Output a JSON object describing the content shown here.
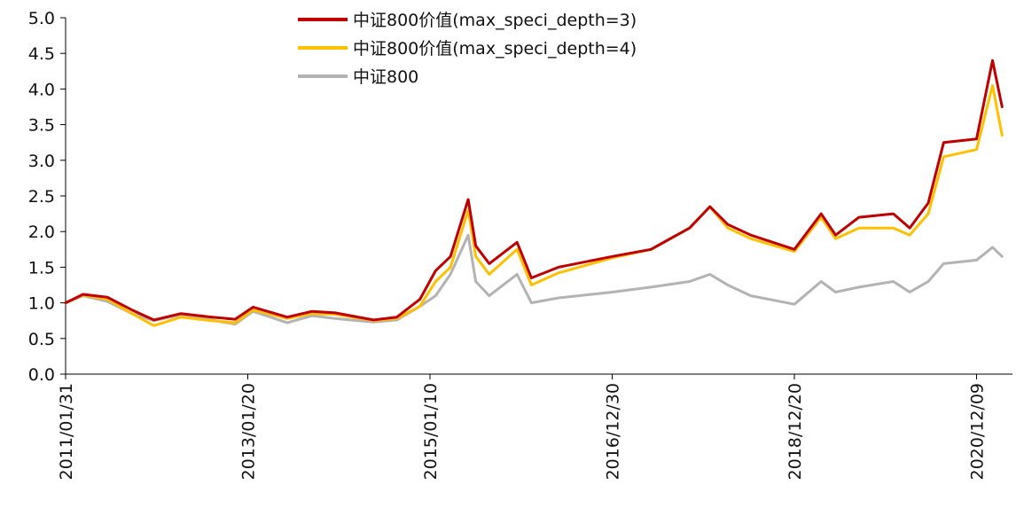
{
  "chart_data": {
    "type": "line",
    "title": "",
    "xlabel": "",
    "ylabel": "",
    "ylim": [
      0,
      5
    ],
    "yticks": [
      "0.0",
      "0.5",
      "1.0",
      "1.5",
      "2.0",
      "2.5",
      "3.0",
      "3.5",
      "4.0",
      "4.5",
      "5.0"
    ],
    "xlim": [
      "2011-01-31",
      "2021-04-30"
    ],
    "xticks": [
      {
        "date": "2011-01-31",
        "label": "2011/01/31"
      },
      {
        "date": "2013-01-20",
        "label": "2013/01/20"
      },
      {
        "date": "2015-01-10",
        "label": "2015/01/10"
      },
      {
        "date": "2016-12-30",
        "label": "2016/12/30"
      },
      {
        "date": "2018-12-20",
        "label": "2018/12/20"
      },
      {
        "date": "2020-12-09",
        "label": "2020/12/09"
      }
    ],
    "grid": false,
    "legend_position": "top-center",
    "series": [
      {
        "name": "中证800价值(max_speci_depth=3)",
        "color": "#C00000",
        "points": [
          [
            "2011-01-31",
            1.0
          ],
          [
            "2011-04-10",
            1.12
          ],
          [
            "2011-07-15",
            1.08
          ],
          [
            "2011-10-20",
            0.9
          ],
          [
            "2012-01-15",
            0.76
          ],
          [
            "2012-05-01",
            0.85
          ],
          [
            "2012-09-01",
            0.8
          ],
          [
            "2012-12-01",
            0.77
          ],
          [
            "2013-02-10",
            0.94
          ],
          [
            "2013-06-25",
            0.8
          ],
          [
            "2013-10-01",
            0.88
          ],
          [
            "2014-01-01",
            0.86
          ],
          [
            "2014-06-01",
            0.76
          ],
          [
            "2014-09-01",
            0.8
          ],
          [
            "2014-12-01",
            1.05
          ],
          [
            "2015-02-01",
            1.45
          ],
          [
            "2015-04-01",
            1.65
          ],
          [
            "2015-06-10",
            2.45
          ],
          [
            "2015-07-10",
            1.8
          ],
          [
            "2015-09-01",
            1.55
          ],
          [
            "2015-12-20",
            1.85
          ],
          [
            "2016-02-15",
            1.35
          ],
          [
            "2016-06-01",
            1.5
          ],
          [
            "2016-12-30",
            1.65
          ],
          [
            "2017-06-01",
            1.75
          ],
          [
            "2017-11-01",
            2.05
          ],
          [
            "2018-01-20",
            2.35
          ],
          [
            "2018-04-01",
            2.1
          ],
          [
            "2018-07-01",
            1.95
          ],
          [
            "2018-12-20",
            1.75
          ],
          [
            "2019-04-05",
            2.25
          ],
          [
            "2019-06-01",
            1.95
          ],
          [
            "2019-09-01",
            2.2
          ],
          [
            "2020-01-15",
            2.25
          ],
          [
            "2020-03-20",
            2.05
          ],
          [
            "2020-06-01",
            2.4
          ],
          [
            "2020-08-01",
            3.25
          ],
          [
            "2020-12-09",
            3.3
          ],
          [
            "2021-02-10",
            4.4
          ],
          [
            "2021-03-20",
            3.75
          ]
        ]
      },
      {
        "name": "中证800价值(max_speci_depth=4)",
        "color": "#FFC000",
        "points": [
          [
            "2011-01-31",
            1.0
          ],
          [
            "2011-04-10",
            1.11
          ],
          [
            "2011-07-15",
            1.05
          ],
          [
            "2011-10-20",
            0.85
          ],
          [
            "2012-01-15",
            0.68
          ],
          [
            "2012-05-01",
            0.8
          ],
          [
            "2012-09-01",
            0.75
          ],
          [
            "2012-12-01",
            0.72
          ],
          [
            "2013-02-10",
            0.9
          ],
          [
            "2013-06-25",
            0.78
          ],
          [
            "2013-10-01",
            0.85
          ],
          [
            "2014-01-01",
            0.84
          ],
          [
            "2014-06-01",
            0.75
          ],
          [
            "2014-09-01",
            0.78
          ],
          [
            "2014-12-01",
            0.95
          ],
          [
            "2015-02-01",
            1.3
          ],
          [
            "2015-04-01",
            1.5
          ],
          [
            "2015-06-10",
            2.3
          ],
          [
            "2015-07-10",
            1.65
          ],
          [
            "2015-09-01",
            1.4
          ],
          [
            "2015-12-20",
            1.75
          ],
          [
            "2016-02-15",
            1.25
          ],
          [
            "2016-06-01",
            1.42
          ],
          [
            "2016-12-30",
            1.63
          ],
          [
            "2017-06-01",
            1.75
          ],
          [
            "2017-11-01",
            2.05
          ],
          [
            "2018-01-20",
            2.35
          ],
          [
            "2018-04-01",
            2.05
          ],
          [
            "2018-07-01",
            1.9
          ],
          [
            "2018-12-20",
            1.72
          ],
          [
            "2019-04-05",
            2.2
          ],
          [
            "2019-06-01",
            1.9
          ],
          [
            "2019-09-01",
            2.05
          ],
          [
            "2020-01-15",
            2.05
          ],
          [
            "2020-03-20",
            1.95
          ],
          [
            "2020-06-01",
            2.25
          ],
          [
            "2020-08-01",
            3.05
          ],
          [
            "2020-12-09",
            3.15
          ],
          [
            "2021-02-10",
            4.05
          ],
          [
            "2021-03-20",
            3.35
          ]
        ]
      },
      {
        "name": "中证800",
        "color": "#B3B3B3",
        "points": [
          [
            "2011-01-31",
            1.0
          ],
          [
            "2011-04-10",
            1.1
          ],
          [
            "2011-07-15",
            1.02
          ],
          [
            "2011-10-20",
            0.85
          ],
          [
            "2012-01-15",
            0.75
          ],
          [
            "2012-05-01",
            0.83
          ],
          [
            "2012-09-01",
            0.76
          ],
          [
            "2012-12-01",
            0.7
          ],
          [
            "2013-02-10",
            0.88
          ],
          [
            "2013-06-25",
            0.72
          ],
          [
            "2013-10-01",
            0.82
          ],
          [
            "2014-01-01",
            0.78
          ],
          [
            "2014-06-01",
            0.73
          ],
          [
            "2014-09-01",
            0.76
          ],
          [
            "2014-12-01",
            0.95
          ],
          [
            "2015-02-01",
            1.1
          ],
          [
            "2015-04-01",
            1.4
          ],
          [
            "2015-06-10",
            1.95
          ],
          [
            "2015-07-10",
            1.3
          ],
          [
            "2015-09-01",
            1.1
          ],
          [
            "2015-12-20",
            1.4
          ],
          [
            "2016-02-15",
            1.0
          ],
          [
            "2016-06-01",
            1.07
          ],
          [
            "2016-12-30",
            1.15
          ],
          [
            "2017-06-01",
            1.22
          ],
          [
            "2017-11-01",
            1.3
          ],
          [
            "2018-01-20",
            1.4
          ],
          [
            "2018-04-01",
            1.25
          ],
          [
            "2018-07-01",
            1.1
          ],
          [
            "2018-12-20",
            0.98
          ],
          [
            "2019-04-05",
            1.3
          ],
          [
            "2019-06-01",
            1.15
          ],
          [
            "2019-09-01",
            1.22
          ],
          [
            "2020-01-15",
            1.3
          ],
          [
            "2020-03-20",
            1.15
          ],
          [
            "2020-06-01",
            1.3
          ],
          [
            "2020-08-01",
            1.55
          ],
          [
            "2020-12-09",
            1.6
          ],
          [
            "2021-02-10",
            1.78
          ],
          [
            "2021-03-20",
            1.65
          ]
        ]
      }
    ]
  }
}
